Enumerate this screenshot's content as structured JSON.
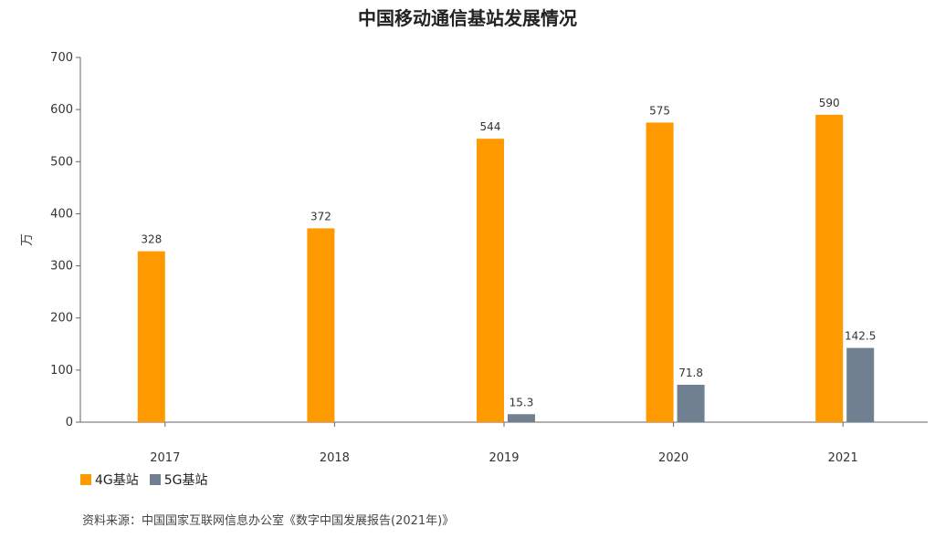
{
  "title": "中国移动通信基站发展情况",
  "source": "资料来源：中国国家互联网信息办公室《数字中国发展报告(2021年)》",
  "colors": {
    "4g": "#ff9900",
    "5g": "#708090",
    "axis": "#666666"
  },
  "chart_data": {
    "type": "bar",
    "title": "中国移动通信基站发展情况",
    "xlabel": "",
    "ylabel": "万",
    "ylim": [
      0,
      700
    ],
    "yticks": [
      0,
      100,
      200,
      300,
      400,
      500,
      600,
      700
    ],
    "grid": false,
    "legend": "bottom-left",
    "categories": [
      "2017",
      "2018",
      "2019",
      "2020",
      "2021"
    ],
    "series": [
      {
        "name": "4G基站",
        "values": [
          328,
          372,
          544,
          575,
          590
        ],
        "labels": [
          "328",
          "372",
          "544",
          "575",
          "590"
        ]
      },
      {
        "name": "5G基站",
        "values": [
          null,
          null,
          15.3,
          71.8,
          142.5
        ],
        "labels": [
          "",
          "",
          "15.3",
          "71.8",
          "142.5"
        ]
      }
    ]
  }
}
